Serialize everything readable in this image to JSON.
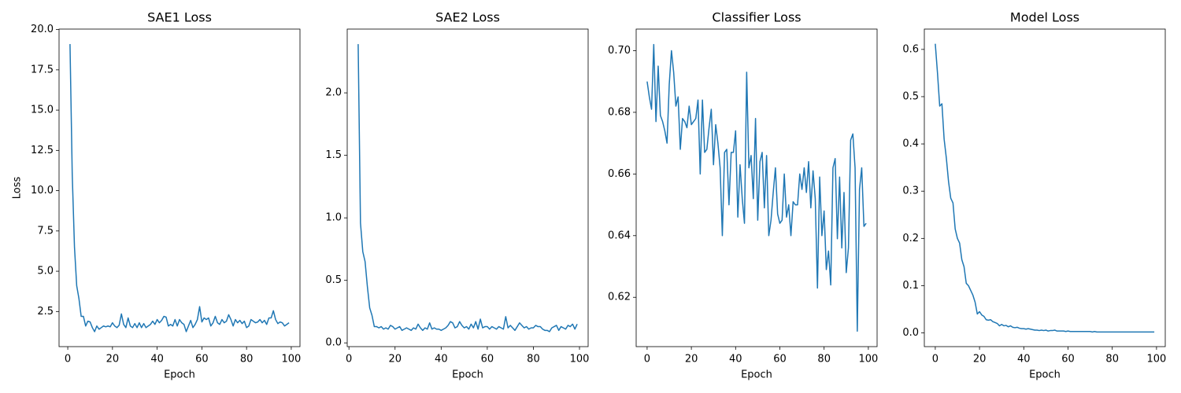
{
  "chart_data": [
    {
      "type": "line",
      "title": "SAE1 Loss",
      "xlabel": "Epoch",
      "ylabel": "Loss",
      "color": "#1f77b4",
      "x": [
        1,
        2,
        3,
        4,
        5,
        6,
        7,
        8,
        9,
        10,
        11,
        12,
        13,
        14,
        15,
        16,
        17,
        18,
        19,
        20,
        21,
        22,
        23,
        24,
        25,
        26,
        27,
        28,
        29,
        30,
        31,
        32,
        33,
        34,
        35,
        36,
        37,
        38,
        39,
        40,
        41,
        42,
        43,
        44,
        45,
        46,
        47,
        48,
        49,
        50,
        51,
        52,
        53,
        54,
        55,
        56,
        57,
        58,
        59,
        60,
        61,
        62,
        63,
        64,
        65,
        66,
        67,
        68,
        69,
        70,
        71,
        72,
        73,
        74,
        75,
        76,
        77,
        78,
        79,
        80,
        81,
        82,
        83,
        84,
        85,
        86,
        87,
        88,
        89,
        90,
        91,
        92,
        93,
        94,
        95,
        96,
        97,
        98,
        99
      ],
      "values": [
        19.1,
        11.0,
        6.5,
        4.1,
        3.3,
        2.2,
        2.2,
        1.6,
        1.9,
        1.85,
        1.5,
        1.25,
        1.6,
        1.4,
        1.5,
        1.6,
        1.55,
        1.6,
        1.55,
        1.8,
        1.6,
        1.5,
        1.65,
        2.35,
        1.7,
        1.5,
        2.1,
        1.6,
        1.5,
        1.75,
        1.5,
        1.8,
        1.5,
        1.75,
        1.5,
        1.6,
        1.7,
        1.9,
        1.7,
        2.0,
        1.8,
        1.95,
        2.2,
        2.15,
        1.6,
        1.7,
        1.6,
        2.0,
        1.6,
        2.0,
        1.8,
        1.7,
        1.25,
        1.6,
        1.95,
        1.5,
        1.7,
        2.0,
        2.8,
        1.85,
        2.1,
        2.0,
        2.1,
        1.6,
        1.8,
        2.2,
        1.8,
        1.7,
        2.0,
        1.8,
        1.9,
        2.3,
        2.0,
        1.6,
        2.0,
        1.8,
        1.95,
        1.75,
        1.9,
        1.5,
        1.6,
        2.0,
        1.9,
        1.8,
        1.85,
        2.0,
        1.8,
        1.95,
        1.7,
        2.1,
        2.1,
        2.55,
        2.0,
        1.75,
        1.85,
        1.8,
        1.6,
        1.7,
        1.8
      ],
      "xlim": [
        -3.9,
        103.9
      ],
      "xticks": [
        0,
        20,
        40,
        60,
        80,
        100
      ],
      "ylim": [
        0.32,
        20.03
      ],
      "yticks": [
        2.5,
        {
          "value": 5,
          "label": "5.0"
        },
        7.5,
        {
          "value": 10,
          "label": "10.0"
        },
        12.5,
        {
          "value": 15,
          "label": "15.0"
        },
        17.5,
        {
          "value": 20,
          "label": "20.0"
        }
      ]
    },
    {
      "type": "line",
      "title": "SAE2 Loss",
      "xlabel": "Epoch",
      "color": "#1f77b4",
      "x": [
        4,
        5,
        6,
        7,
        8,
        9,
        10,
        11,
        12,
        13,
        14,
        15,
        16,
        17,
        18,
        19,
        20,
        21,
        22,
        23,
        24,
        25,
        26,
        27,
        28,
        29,
        30,
        31,
        32,
        33,
        34,
        35,
        36,
        37,
        38,
        39,
        40,
        41,
        42,
        43,
        44,
        45,
        46,
        47,
        48,
        49,
        50,
        51,
        52,
        53,
        54,
        55,
        56,
        57,
        58,
        59,
        60,
        61,
        62,
        63,
        64,
        65,
        66,
        67,
        68,
        69,
        70,
        71,
        72,
        73,
        74,
        75,
        76,
        77,
        78,
        79,
        80,
        81,
        82,
        83,
        84,
        85,
        86,
        87,
        88,
        89,
        90,
        91,
        92,
        93,
        94,
        95,
        96,
        97,
        98,
        99
      ],
      "values": [
        2.39,
        0.96,
        0.73,
        0.65,
        0.45,
        0.28,
        0.22,
        0.13,
        0.13,
        0.12,
        0.13,
        0.11,
        0.12,
        0.11,
        0.14,
        0.13,
        0.11,
        0.12,
        0.13,
        0.1,
        0.11,
        0.12,
        0.11,
        0.1,
        0.12,
        0.11,
        0.15,
        0.12,
        0.1,
        0.12,
        0.11,
        0.16,
        0.11,
        0.12,
        0.11,
        0.11,
        0.1,
        0.11,
        0.12,
        0.14,
        0.17,
        0.16,
        0.12,
        0.13,
        0.17,
        0.14,
        0.12,
        0.13,
        0.11,
        0.15,
        0.12,
        0.17,
        0.11,
        0.19,
        0.12,
        0.13,
        0.13,
        0.11,
        0.13,
        0.12,
        0.11,
        0.13,
        0.12,
        0.11,
        0.21,
        0.12,
        0.14,
        0.12,
        0.1,
        0.13,
        0.16,
        0.14,
        0.12,
        0.13,
        0.11,
        0.12,
        0.12,
        0.14,
        0.13,
        0.13,
        0.11,
        0.1,
        0.1,
        0.09,
        0.12,
        0.13,
        0.14,
        0.1,
        0.13,
        0.12,
        0.11,
        0.14,
        0.13,
        0.15,
        0.11,
        0.15
      ],
      "xlim": [
        -0.75,
        103.75
      ],
      "xticks": [
        0,
        20,
        40,
        60,
        80,
        100
      ],
      "ylim": [
        -0.03,
        2.51
      ],
      "yticks": [
        {
          "value": 0,
          "label": "0.0"
        },
        0.5,
        {
          "value": 1,
          "label": "1.0"
        },
        1.5,
        {
          "value": 2,
          "label": "2.0"
        }
      ]
    },
    {
      "type": "line",
      "title": "Classifier Loss",
      "xlabel": "Epoch",
      "color": "#1f77b4",
      "x": [
        0,
        1,
        2,
        3,
        4,
        5,
        6,
        7,
        8,
        9,
        10,
        11,
        12,
        13,
        14,
        15,
        16,
        17,
        18,
        19,
        20,
        21,
        22,
        23,
        24,
        25,
        26,
        27,
        28,
        29,
        30,
        31,
        32,
        33,
        34,
        35,
        36,
        37,
        38,
        39,
        40,
        41,
        42,
        43,
        44,
        45,
        46,
        47,
        48,
        49,
        50,
        51,
        52,
        53,
        54,
        55,
        56,
        57,
        58,
        59,
        60,
        61,
        62,
        63,
        64,
        65,
        66,
        67,
        68,
        69,
        70,
        71,
        72,
        73,
        74,
        75,
        76,
        77,
        78,
        79,
        80,
        81,
        82,
        83,
        84,
        85,
        86,
        87,
        88,
        89,
        90,
        91,
        92,
        93,
        94,
        95,
        96,
        97,
        98,
        99
      ],
      "values": [
        0.69,
        0.685,
        0.681,
        0.702,
        0.677,
        0.695,
        0.679,
        0.677,
        0.674,
        0.67,
        0.689,
        0.7,
        0.693,
        0.682,
        0.685,
        0.668,
        0.678,
        0.677,
        0.675,
        0.682,
        0.676,
        0.677,
        0.678,
        0.684,
        0.66,
        0.684,
        0.667,
        0.668,
        0.675,
        0.681,
        0.663,
        0.676,
        0.67,
        0.662,
        0.64,
        0.667,
        0.668,
        0.65,
        0.667,
        0.667,
        0.674,
        0.646,
        0.663,
        0.652,
        0.644,
        0.693,
        0.662,
        0.666,
        0.652,
        0.678,
        0.645,
        0.664,
        0.667,
        0.649,
        0.666,
        0.64,
        0.645,
        0.654,
        0.662,
        0.647,
        0.644,
        0.645,
        0.66,
        0.646,
        0.65,
        0.64,
        0.651,
        0.65,
        0.65,
        0.66,
        0.655,
        0.662,
        0.654,
        0.664,
        0.649,
        0.661,
        0.652,
        0.623,
        0.659,
        0.64,
        0.648,
        0.629,
        0.635,
        0.624,
        0.662,
        0.665,
        0.639,
        0.659,
        0.636,
        0.654,
        0.628,
        0.636,
        0.671,
        0.673,
        0.662,
        0.609,
        0.655,
        0.662,
        0.643,
        0.644
      ],
      "xlim": [
        -4.95,
        103.95
      ],
      "xticks": [
        0,
        20,
        40,
        60,
        80,
        100
      ],
      "ylim": [
        0.604,
        0.707
      ],
      "yticks": [
        0.62,
        0.64,
        0.66,
        0.68,
        {
          "value": 0.7,
          "label": "0.70"
        }
      ]
    },
    {
      "type": "line",
      "title": "Model Loss",
      "xlabel": "Epoch",
      "color": "#1f77b4",
      "x": [
        0,
        1,
        2,
        3,
        4,
        5,
        6,
        7,
        8,
        9,
        10,
        11,
        12,
        13,
        14,
        15,
        16,
        17,
        18,
        19,
        20,
        21,
        22,
        23,
        24,
        25,
        26,
        27,
        28,
        29,
        30,
        31,
        32,
        33,
        34,
        35,
        36,
        37,
        38,
        39,
        40,
        41,
        42,
        43,
        44,
        45,
        46,
        47,
        48,
        49,
        50,
        51,
        52,
        53,
        54,
        55,
        56,
        57,
        58,
        59,
        60,
        61,
        62,
        63,
        64,
        65,
        66,
        67,
        68,
        69,
        70,
        71,
        72,
        73,
        74,
        75,
        76,
        77,
        78,
        79,
        80,
        81,
        82,
        83,
        84,
        85,
        86,
        87,
        88,
        89,
        90,
        91,
        92,
        93,
        94,
        95,
        96,
        97,
        98,
        99
      ],
      "values": [
        0.612,
        0.55,
        0.48,
        0.485,
        0.41,
        0.37,
        0.32,
        0.285,
        0.275,
        0.22,
        0.2,
        0.19,
        0.155,
        0.14,
        0.105,
        0.1,
        0.09,
        0.08,
        0.065,
        0.04,
        0.045,
        0.038,
        0.035,
        0.028,
        0.027,
        0.028,
        0.024,
        0.022,
        0.02,
        0.015,
        0.018,
        0.015,
        0.016,
        0.013,
        0.015,
        0.012,
        0.011,
        0.012,
        0.01,
        0.009,
        0.009,
        0.008,
        0.009,
        0.008,
        0.007,
        0.006,
        0.006,
        0.005,
        0.006,
        0.005,
        0.006,
        0.004,
        0.005,
        0.005,
        0.006,
        0.004,
        0.004,
        0.004,
        0.004,
        0.003,
        0.004,
        0.003,
        0.003,
        0.003,
        0.003,
        0.003,
        0.003,
        0.003,
        0.003,
        0.003,
        0.003,
        0.002,
        0.003,
        0.002,
        0.002,
        0.002,
        0.002,
        0.002,
        0.002,
        0.002,
        0.002,
        0.002,
        0.002,
        0.002,
        0.002,
        0.002,
        0.002,
        0.002,
        0.002,
        0.002,
        0.002,
        0.002,
        0.002,
        0.002,
        0.002,
        0.002,
        0.002,
        0.002,
        0.002,
        0.002
      ],
      "xlim": [
        -4.95,
        103.95
      ],
      "xticks": [
        0,
        20,
        40,
        60,
        80,
        100
      ],
      "ylim": [
        -0.029,
        0.643
      ],
      "yticks": [
        {
          "value": 0,
          "label": "0.0"
        },
        0.1,
        0.2,
        0.3,
        0.4,
        0.5,
        0.6
      ]
    }
  ]
}
